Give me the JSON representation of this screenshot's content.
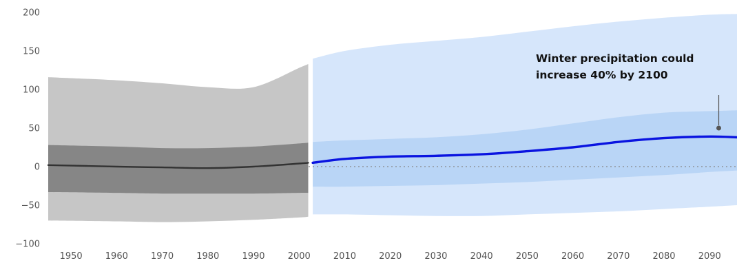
{
  "chart_data": {
    "type": "area",
    "title": "",
    "xlabel": "",
    "ylabel": "",
    "xlim": [
      1945,
      2096
    ],
    "ylim": [
      -100,
      200
    ],
    "x_ticks": [
      1950,
      1960,
      1970,
      1980,
      1990,
      2000,
      2010,
      2020,
      2030,
      2040,
      2050,
      2060,
      2070,
      2080,
      2090
    ],
    "y_ticks": [
      200,
      150,
      100,
      50,
      0,
      -50,
      -100
    ],
    "grid": false,
    "legend": "none",
    "annotation": {
      "lines": [
        "Winter precipitation could",
        "increase 40% by 2100"
      ],
      "x": 2092,
      "y": 50
    },
    "colors": {
      "historical_outer": "#c6c6c6",
      "historical_inner": "#868686",
      "historical_line": "#333333",
      "projected_outer": "#d6e6fb",
      "projected_inner": "#b9d5f6",
      "projected_line": "#0a14e0",
      "zero_line": "#888888"
    },
    "series": [
      {
        "x": [
          1945,
          1960,
          1970,
          1980,
          1990,
          2000,
          2002
        ],
        "values": [
          2,
          0,
          -1,
          -2,
          0,
          4,
          5
        ],
        "band_outer_low": [
          -70,
          -71,
          -72,
          -71,
          -69,
          -66,
          -65
        ],
        "band_outer_high": [
          116,
          112,
          108,
          103,
          103,
          128,
          133
        ],
        "band_inner_low": [
          -33,
          -34,
          -35,
          -35,
          -35,
          -34,
          -34
        ],
        "band_inner_high": [
          28,
          26,
          24,
          24,
          26,
          30,
          31
        ]
      },
      {
        "x": [
          2003,
          2010,
          2020,
          2030,
          2040,
          2050,
          2060,
          2070,
          2080,
          2090,
          2096
        ],
        "values": [
          5,
          10,
          13,
          14,
          16,
          20,
          25,
          32,
          37,
          39,
          38
        ],
        "band_outer_low": [
          -62,
          -62,
          -63,
          -64,
          -64,
          -62,
          -60,
          -58,
          -55,
          -52,
          -50
        ],
        "band_outer_high": [
          140,
          150,
          158,
          163,
          168,
          175,
          182,
          188,
          193,
          197,
          198
        ],
        "band_inner_low": [
          -26,
          -26,
          -25,
          -24,
          -22,
          -20,
          -17,
          -14,
          -11,
          -7,
          -5
        ],
        "band_inner_high": [
          32,
          34,
          36,
          38,
          42,
          48,
          56,
          64,
          70,
          72,
          73
        ]
      }
    ]
  }
}
